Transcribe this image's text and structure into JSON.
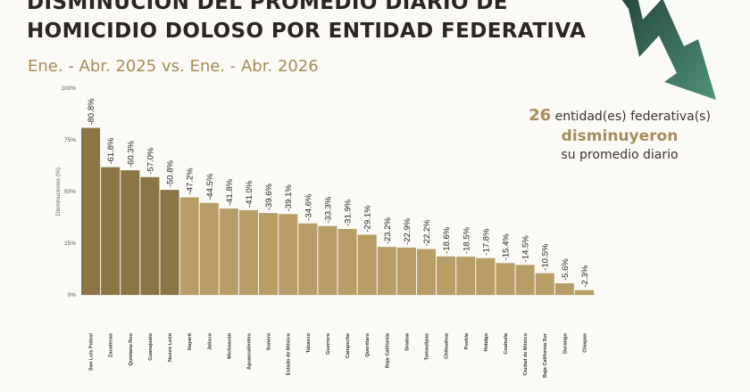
{
  "header": {
    "title_line1": "DISMINUCIÓN DEL PROMEDIO DIARIO DE",
    "title_line2": "HOMICIDIO DOLOSO POR ENTIDAD FEDERATIVA",
    "subtitle": "Ene. - Abr. 2025 vs. Ene. - Abr. 2026"
  },
  "callout": {
    "count": "26",
    "line1": "entidad(es) federativa(s)",
    "line2": "disminuyeron",
    "line3": "su promedio diario"
  },
  "colors": {
    "dark_bar": "#8b7547",
    "light_bar": "#b89e66",
    "arrow": "#2f6b58",
    "title": "#2b2623",
    "accent": "#a88d58"
  },
  "chart_data": {
    "type": "bar",
    "ylabel": "Disminuciones (%)",
    "ylim": [
      0,
      100
    ],
    "yticks": [
      "0%",
      "25%",
      "50%",
      "75%",
      "100%"
    ],
    "highlight_count": 5,
    "categories": [
      "San Luis Potosí",
      "Zacatecas",
      "Quintana Roo",
      "Guanajuato",
      "Nuevo León",
      "Nayarit",
      "Jalisco",
      "Michoacán",
      "Aguascalientes",
      "Sonora",
      "Estado de México",
      "Tabasco",
      "Guerrero",
      "Campeche",
      "Querétaro",
      "Baja California",
      "Sinaloa",
      "Tamaulipas",
      "Chihuahua",
      "Puebla",
      "Hidalgo",
      "Coahuila",
      "Ciudad de México",
      "Baja California Sur",
      "Durango",
      "Chiapas"
    ],
    "values": [
      80.8,
      61.8,
      60.3,
      57.0,
      50.8,
      47.2,
      44.5,
      41.8,
      41.0,
      39.6,
      39.1,
      34.6,
      33.3,
      31.9,
      29.1,
      23.2,
      22.9,
      22.2,
      18.6,
      18.5,
      17.8,
      15.4,
      14.5,
      10.5,
      5.6,
      2.3
    ],
    "labels": [
      "-80.8%",
      "-61.8%",
      "-60.3%",
      "-57.0%",
      "-50.8%",
      "-47.2%",
      "-44.5%",
      "-41.8%",
      "-41.0%",
      "-39.6%",
      "-39.1%",
      "-34.6%",
      "-33.3%",
      "-31.9%",
      "-29.1%",
      "-23.2%",
      "-22.9%",
      "-22.2%",
      "-18.6%",
      "-18.5%",
      "-17.8%",
      "-15.4%",
      "-14.5%",
      "-10.5%",
      "-5.6%",
      "-2.3%"
    ]
  }
}
